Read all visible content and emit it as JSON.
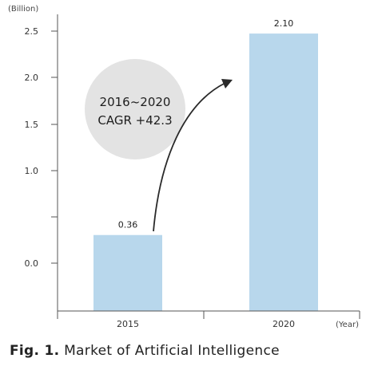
{
  "caption": {
    "prefix": "Fig. 1.",
    "title": "Market of Artificial Intelligence"
  },
  "chart_data": {
    "type": "bar",
    "y_unit_label": "(Billion)",
    "x_unit_label": "(Year)",
    "categories": [
      "2015",
      "2020"
    ],
    "values": [
      0.36,
      2.1
    ],
    "value_labels": [
      "0.36",
      "2.10"
    ],
    "ytick_labels": [
      "2.5",
      "2.0",
      "1.5",
      "1.0",
      "",
      "0.0",
      ""
    ],
    "annotation": {
      "line1": "2016~2020",
      "line2": "CAGR +42.3"
    },
    "bar_color": "#b8d7ec",
    "callout_color": "#e3e3e3",
    "grid": false
  }
}
